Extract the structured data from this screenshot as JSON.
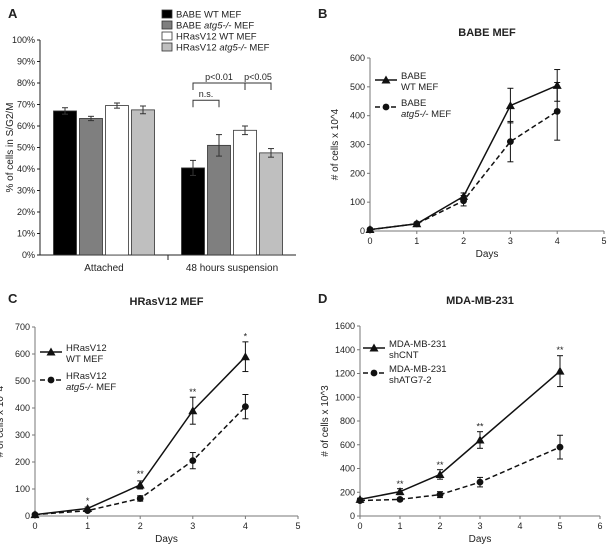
{
  "figure": {
    "letters": [
      "A",
      "B",
      "C",
      "D"
    ]
  },
  "chart_data": [
    {
      "id": "A",
      "type": "bar",
      "title": "",
      "ylabel": "% of cells in S/G2/M",
      "xlabel": "",
      "ylim": [
        0,
        100
      ],
      "yticks": [
        0,
        10,
        20,
        30,
        40,
        50,
        60,
        70,
        80,
        90,
        100
      ],
      "yticklabels": [
        "0%",
        "10%",
        "20%",
        "30%",
        "40%",
        "50%",
        "60%",
        "70%",
        "80%",
        "90%",
        "100%"
      ],
      "categories": [
        "Attached",
        "48 hours suspension"
      ],
      "series": [
        {
          "name": "BABE WT MEF",
          "color": "#000000",
          "values": [
            67,
            40.5
          ],
          "errors": [
            1.5,
            3.5
          ]
        },
        {
          "name": "BABE atg5-/- MEF",
          "color": "#7f7f7f",
          "values": [
            63.5,
            51
          ],
          "errors": [
            1,
            5
          ]
        },
        {
          "name": "HRasV12 WT MEF",
          "color": "#ffffff",
          "values": [
            69.5,
            58
          ],
          "errors": [
            1.2,
            2
          ]
        },
        {
          "name": "HRasV12 atg5-/- MEF",
          "color": "#bfbfbf",
          "values": [
            67.5,
            47.5
          ],
          "errors": [
            1.8,
            2
          ]
        }
      ],
      "legend": [
        {
          "pre": "BABE WT MEF",
          "ital": "",
          "post": ""
        },
        {
          "pre": "BABE ",
          "ital": "atg5-/-",
          "post": " MEF"
        },
        {
          "pre": "HRasV12 WT MEF",
          "ital": "",
          "post": ""
        },
        {
          "pre": "HRasV12 ",
          "ital": "atg5-/-",
          "post": " MEF"
        }
      ],
      "annotations": [
        {
          "text": "n.s.",
          "from_series": 0,
          "to_series": 1,
          "level": 72
        },
        {
          "text": "p<0.01",
          "from_series": 0,
          "to_series": 2,
          "level": 80
        },
        {
          "text": "p<0.05",
          "from_series": 2,
          "to_series": 3,
          "level": 80
        }
      ]
    },
    {
      "id": "B",
      "type": "line",
      "title": "BABE MEF",
      "xlabel": "Days",
      "ylabel": "# of cells x 10^4",
      "xlim": [
        0,
        5
      ],
      "ylim": [
        0,
        600
      ],
      "xticks": [
        0,
        1,
        2,
        3,
        4,
        5
      ],
      "yticks": [
        0,
        100,
        200,
        300,
        400,
        500,
        600
      ],
      "x": [
        0,
        1,
        2,
        3,
        4
      ],
      "series": [
        {
          "name": "BABE WT MEF",
          "label1": "BABE",
          "label2": "WT MEF",
          "marker": "triangle",
          "dashed": false,
          "values": [
            5,
            25,
            120,
            435,
            505
          ],
          "errors": [
            3,
            5,
            12,
            60,
            55
          ]
        },
        {
          "name": "BABE atg5-/- MEF",
          "label1": "BABE",
          "label2": "atg5-/- MEF",
          "marker": "circle",
          "dashed": true,
          "values": [
            5,
            25,
            105,
            310,
            415
          ],
          "errors": [
            3,
            5,
            18,
            70,
            100
          ]
        }
      ],
      "stars": []
    },
    {
      "id": "C",
      "type": "line",
      "title": "HRasV12 MEF",
      "xlabel": "Days",
      "ylabel": "# of cells x 10^4",
      "xlim": [
        0,
        5
      ],
      "ylim": [
        0,
        700
      ],
      "xticks": [
        0,
        1,
        2,
        3,
        4,
        5
      ],
      "yticks": [
        0,
        100,
        200,
        300,
        400,
        500,
        600,
        700
      ],
      "x": [
        0,
        1,
        2,
        3,
        4
      ],
      "series": [
        {
          "name": "HRasV12 WT MEF",
          "label1": "HRasV12",
          "label2": "WT MEF",
          "marker": "triangle",
          "dashed": false,
          "values": [
            5,
            28,
            115,
            390,
            590
          ],
          "errors": [
            3,
            5,
            15,
            50,
            55
          ]
        },
        {
          "name": "HRasV12 atg5-/- MEF",
          "label1": "HRasV12",
          "label2": "atg5-/- MEF",
          "marker": "circle",
          "dashed": true,
          "values": [
            5,
            20,
            65,
            205,
            405
          ],
          "errors": [
            3,
            4,
            10,
            30,
            45
          ]
        }
      ],
      "stars": [
        {
          "x": 1,
          "text": "*",
          "value": 55
        },
        {
          "x": 2,
          "text": "**",
          "value": 155
        },
        {
          "x": 3,
          "text": "**",
          "value": 460
        },
        {
          "x": 4,
          "text": "*",
          "value": 665
        }
      ]
    },
    {
      "id": "D",
      "type": "line",
      "title": "MDA-MB-231",
      "xlabel": "Days",
      "ylabel": "# of cells x 10^3",
      "xlim": [
        0,
        6
      ],
      "ylim": [
        0,
        1600
      ],
      "xticks": [
        0,
        1,
        2,
        3,
        4,
        5,
        6
      ],
      "yticks": [
        0,
        200,
        400,
        600,
        800,
        1000,
        1200,
        1400,
        1600
      ],
      "x": [
        0,
        1,
        2,
        3,
        5
      ],
      "series": [
        {
          "name": "MDA-MB-231 shCNT",
          "label1": "MDA-MB-231",
          "label2": "shCNT",
          "marker": "triangle",
          "dashed": false,
          "values": [
            140,
            205,
            350,
            640,
            1220
          ],
          "errors": [
            10,
            25,
            40,
            70,
            130
          ]
        },
        {
          "name": "MDA-MB-231 shATG7-2",
          "label1": "MDA-MB-231",
          "label2": "shATG7-2",
          "marker": "circle",
          "dashed": true,
          "values": [
            130,
            140,
            180,
            285,
            580
          ],
          "errors": [
            10,
            12,
            25,
            40,
            100
          ]
        }
      ],
      "stars": [
        {
          "x": 1,
          "text": "**",
          "value": 270
        },
        {
          "x": 2,
          "text": "**",
          "value": 430
        },
        {
          "x": 3,
          "text": "**",
          "value": 755
        },
        {
          "x": 5,
          "text": "**",
          "value": 1400
        }
      ]
    }
  ]
}
